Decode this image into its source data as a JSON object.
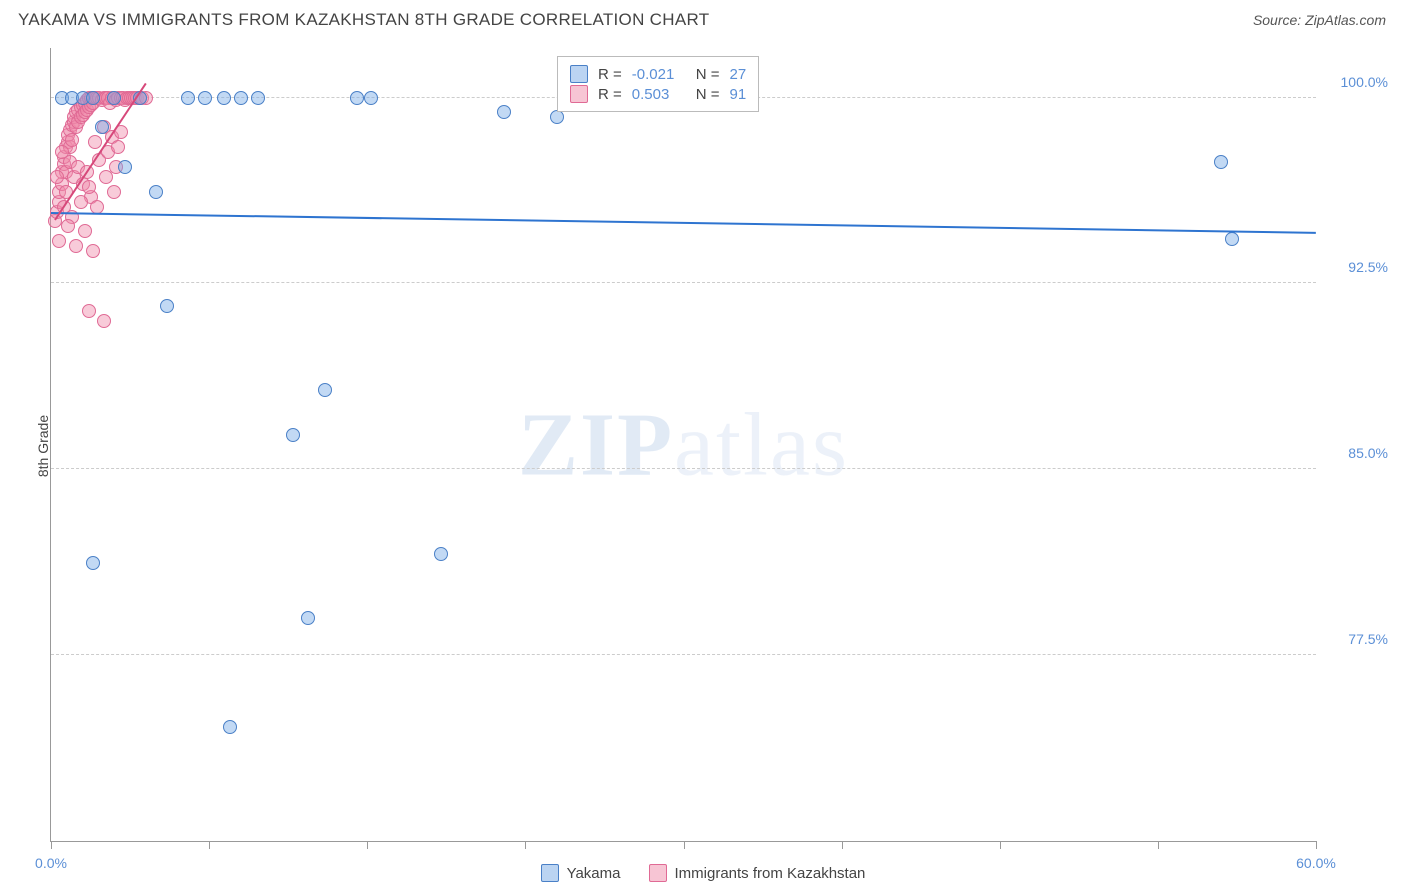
{
  "header": {
    "title": "YAKAMA VS IMMIGRANTS FROM KAZAKHSTAN 8TH GRADE CORRELATION CHART",
    "source_label": "Source:",
    "source_value": "ZipAtlas.com"
  },
  "chart": {
    "type": "scatter",
    "ylabel": "8th Grade",
    "background_color": "#ffffff",
    "grid_color": "#cccccc",
    "axis_color": "#999999",
    "tick_label_color": "#5b8fd6",
    "marker_radius": 7,
    "xlim": [
      0,
      60
    ],
    "ylim": [
      70,
      102
    ],
    "y_gridlines": [
      77.5,
      85.0,
      92.5,
      100.0
    ],
    "y_tick_labels": [
      "77.5%",
      "85.0%",
      "92.5%",
      "100.0%"
    ],
    "x_ticks": [
      0,
      7.5,
      15,
      22.5,
      30,
      37.5,
      45,
      52.5,
      60
    ],
    "x_tick_labels": {
      "0": "0.0%",
      "60": "60.0%"
    },
    "watermark": {
      "bold": "ZIP",
      "rest": "atlas"
    },
    "series": [
      {
        "name": "Yakama",
        "color_fill": "rgba(120,170,230,0.45)",
        "color_stroke": "#4a80c7",
        "trend": {
          "x1": 0,
          "y1": 95.3,
          "x2": 60,
          "y2": 94.5,
          "color": "#2e74d0",
          "width": 2
        },
        "points": [
          [
            0.5,
            100
          ],
          [
            1.0,
            100
          ],
          [
            1.5,
            100
          ],
          [
            2.0,
            100
          ],
          [
            2.4,
            98.8
          ],
          [
            3.0,
            100
          ],
          [
            3.5,
            97.2
          ],
          [
            4.2,
            100
          ],
          [
            5.0,
            96.2
          ],
          [
            6.5,
            100
          ],
          [
            7.3,
            100
          ],
          [
            8.2,
            100
          ],
          [
            9.0,
            100
          ],
          [
            9.8,
            100
          ],
          [
            14.5,
            100
          ],
          [
            15.2,
            100
          ],
          [
            21.5,
            99.4
          ],
          [
            24.0,
            99.2
          ],
          [
            5.5,
            91.6
          ],
          [
            2.0,
            81.2
          ],
          [
            11.5,
            86.4
          ],
          [
            12.2,
            79.0
          ],
          [
            8.5,
            74.6
          ],
          [
            18.5,
            81.6
          ],
          [
            13.0,
            88.2
          ],
          [
            56.0,
            94.3
          ],
          [
            55.5,
            97.4
          ]
        ]
      },
      {
        "name": "Immigrants from Kazakhstan",
        "color_fill": "rgba(240,140,170,0.45)",
        "color_stroke": "#e06a95",
        "trend": {
          "x1": 0.2,
          "y1": 95.0,
          "x2": 4.5,
          "y2": 100.5,
          "color": "#d6487a",
          "width": 2
        },
        "points": [
          [
            0.2,
            95.0
          ],
          [
            0.3,
            95.4
          ],
          [
            0.4,
            95.8
          ],
          [
            0.4,
            96.2
          ],
          [
            0.5,
            96.5
          ],
          [
            0.5,
            97.0
          ],
          [
            0.6,
            97.3
          ],
          [
            0.6,
            97.6
          ],
          [
            0.7,
            97.0
          ],
          [
            0.7,
            98.0
          ],
          [
            0.8,
            98.2
          ],
          [
            0.8,
            98.5
          ],
          [
            0.9,
            98.0
          ],
          [
            0.9,
            98.7
          ],
          [
            1.0,
            98.3
          ],
          [
            1.0,
            98.9
          ],
          [
            1.1,
            99.0
          ],
          [
            1.1,
            99.2
          ],
          [
            1.2,
            98.8
          ],
          [
            1.2,
            99.4
          ],
          [
            1.3,
            99.0
          ],
          [
            1.3,
            99.5
          ],
          [
            1.4,
            99.6
          ],
          [
            1.4,
            99.2
          ],
          [
            1.5,
            99.7
          ],
          [
            1.5,
            99.3
          ],
          [
            1.6,
            99.8
          ],
          [
            1.6,
            99.4
          ],
          [
            1.7,
            99.9
          ],
          [
            1.7,
            99.5
          ],
          [
            1.8,
            100.0
          ],
          [
            1.8,
            99.6
          ],
          [
            1.9,
            100.0
          ],
          [
            1.9,
            99.7
          ],
          [
            2.0,
            100.0
          ],
          [
            2.0,
            99.8
          ],
          [
            2.1,
            100.0
          ],
          [
            2.2,
            100.0
          ],
          [
            2.3,
            100.0
          ],
          [
            2.4,
            99.9
          ],
          [
            2.5,
            100.0
          ],
          [
            2.6,
            100.0
          ],
          [
            2.7,
            100.0
          ],
          [
            2.8,
            99.8
          ],
          [
            2.9,
            100.0
          ],
          [
            3.0,
            100.0
          ],
          [
            3.1,
            99.9
          ],
          [
            3.2,
            100.0
          ],
          [
            3.3,
            100.0
          ],
          [
            3.4,
            100.0
          ],
          [
            3.5,
            99.9
          ],
          [
            3.6,
            100.0
          ],
          [
            3.7,
            100.0
          ],
          [
            3.8,
            100.0
          ],
          [
            3.9,
            100.0
          ],
          [
            4.0,
            100.0
          ],
          [
            4.1,
            100.0
          ],
          [
            4.2,
            100.0
          ],
          [
            4.3,
            100.0
          ],
          [
            4.5,
            100.0
          ],
          [
            0.3,
            96.8
          ],
          [
            0.5,
            97.8
          ],
          [
            0.7,
            96.2
          ],
          [
            0.9,
            97.4
          ],
          [
            1.1,
            96.8
          ],
          [
            1.3,
            97.2
          ],
          [
            1.5,
            96.5
          ],
          [
            1.7,
            97.0
          ],
          [
            1.9,
            96.0
          ],
          [
            2.1,
            98.2
          ],
          [
            2.3,
            97.5
          ],
          [
            2.5,
            98.8
          ],
          [
            2.7,
            97.8
          ],
          [
            2.9,
            98.4
          ],
          [
            3.1,
            97.2
          ],
          [
            3.3,
            98.6
          ],
          [
            0.6,
            95.6
          ],
          [
            1.0,
            95.2
          ],
          [
            1.4,
            95.8
          ],
          [
            1.8,
            96.4
          ],
          [
            2.2,
            95.6
          ],
          [
            2.6,
            96.8
          ],
          [
            3.0,
            96.2
          ],
          [
            0.4,
            94.2
          ],
          [
            0.8,
            94.8
          ],
          [
            1.2,
            94.0
          ],
          [
            1.6,
            94.6
          ],
          [
            2.0,
            93.8
          ],
          [
            1.8,
            91.4
          ],
          [
            2.5,
            91.0
          ],
          [
            3.2,
            98.0
          ]
        ]
      }
    ]
  },
  "stats_legend": {
    "rows": [
      {
        "swatch": "blue",
        "r_label": "R =",
        "r_value": "-0.021",
        "n_label": "N =",
        "n_value": "27"
      },
      {
        "swatch": "pink",
        "r_label": "R =",
        "r_value": "0.503",
        "n_label": "N =",
        "n_value": "91"
      }
    ]
  },
  "bottom_legend": {
    "items": [
      {
        "swatch": "blue",
        "label": "Yakama"
      },
      {
        "swatch": "pink",
        "label": "Immigrants from Kazakhstan"
      }
    ]
  }
}
